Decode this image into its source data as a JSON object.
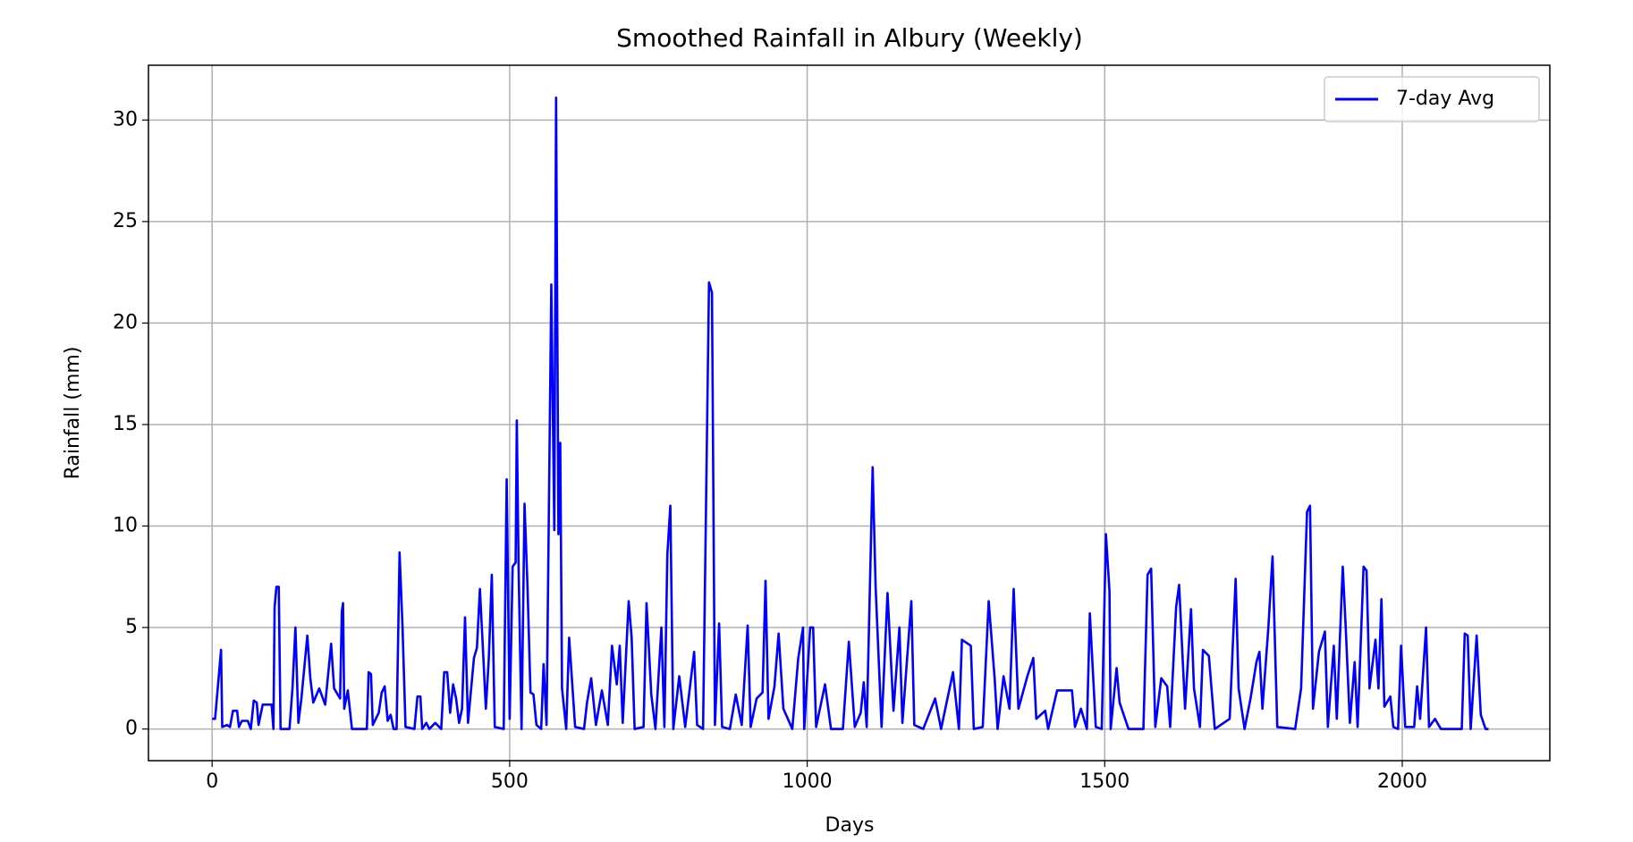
{
  "chart_data": {
    "type": "line",
    "title": "Smoothed Rainfall in Albury (Weekly)",
    "x_label": "Days",
    "y_label": "Rainfall (mm)",
    "xlim": [
      -107,
      2248
    ],
    "ylim": [
      -1.56,
      32.7
    ],
    "xticks": [
      0,
      500,
      1000,
      1500,
      2000
    ],
    "yticks": [
      0,
      5,
      10,
      15,
      20,
      25,
      30
    ],
    "grid": true,
    "legend": "upper right",
    "x": [
      0,
      5,
      15,
      17,
      25,
      30,
      35,
      42,
      45,
      50,
      60,
      65,
      70,
      75,
      78,
      85,
      100,
      103,
      105,
      108,
      112,
      115,
      130,
      135,
      140,
      145,
      150,
      160,
      165,
      170,
      180,
      190,
      200,
      205,
      215,
      218,
      220,
      222,
      228,
      235,
      260,
      263,
      267,
      270,
      280,
      285,
      290,
      295,
      300,
      305,
      310,
      315,
      320,
      325,
      340,
      345,
      350,
      353,
      360,
      365,
      375,
      385,
      390,
      395,
      400,
      405,
      410,
      415,
      420,
      425,
      430,
      440,
      445,
      450,
      455,
      460,
      465,
      470,
      475,
      490,
      495,
      500,
      505,
      510,
      512,
      515,
      520,
      525,
      530,
      535,
      540,
      545,
      553,
      557,
      562,
      570,
      575,
      578,
      582,
      585,
      588,
      595,
      600,
      610,
      625,
      630,
      637,
      645,
      655,
      665,
      672,
      680,
      685,
      690,
      700,
      705,
      710,
      725,
      730,
      738,
      745,
      755,
      760,
      765,
      770,
      775,
      785,
      795,
      810,
      815,
      825,
      835,
      840,
      845,
      852,
      857,
      870,
      880,
      890,
      900,
      905,
      915,
      925,
      930,
      935,
      945,
      952,
      960,
      975,
      985,
      993,
      995,
      1005,
      1010,
      1015,
      1030,
      1040,
      1060,
      1070,
      1080,
      1090,
      1095,
      1100,
      1110,
      1115,
      1125,
      1135,
      1145,
      1155,
      1160,
      1175,
      1180,
      1195,
      1215,
      1225,
      1245,
      1255,
      1260,
      1275,
      1280,
      1295,
      1305,
      1315,
      1320,
      1330,
      1340,
      1347,
      1355,
      1370,
      1380,
      1385,
      1400,
      1405,
      1420,
      1445,
      1450,
      1460,
      1470,
      1475,
      1485,
      1495,
      1502,
      1508,
      1510,
      1520,
      1525,
      1540,
      1565,
      1572,
      1578,
      1585,
      1595,
      1605,
      1610,
      1620,
      1625,
      1635,
      1645,
      1650,
      1660,
      1665,
      1675,
      1685,
      1710,
      1720,
      1725,
      1735,
      1745,
      1755,
      1760,
      1765,
      1775,
      1782,
      1790,
      1820,
      1830,
      1840,
      1845,
      1850,
      1860,
      1870,
      1875,
      1885,
      1890,
      1895,
      1900,
      1905,
      1912,
      1920,
      1925,
      1935,
      1940,
      1945,
      1955,
      1960,
      1965,
      1970,
      1980,
      1985,
      1993,
      1998,
      2005,
      2020,
      2025,
      2030,
      2040,
      2045,
      2055,
      2065,
      2100,
      2105,
      2110,
      2115,
      2125,
      2132,
      2140,
      2145
    ],
    "series": [
      {
        "name": "7-day Avg",
        "color": "#0000ff",
        "values": [
          0.5,
          0.5,
          3.9,
          0.1,
          0.2,
          0.1,
          0.9,
          0.9,
          0.1,
          0.4,
          0.4,
          0,
          1.4,
          1.3,
          0.2,
          1.2,
          1.2,
          0,
          6,
          7,
          7,
          0,
          0,
          2,
          5,
          0.3,
          1.5,
          4.6,
          2.5,
          1.3,
          2,
          1.2,
          4.2,
          2,
          1.5,
          5.8,
          6.2,
          1,
          1.9,
          0,
          0,
          2.8,
          2.7,
          0.2,
          0.8,
          1.8,
          2.1,
          0.4,
          0.7,
          0,
          0,
          8.7,
          5,
          0.1,
          0,
          1.6,
          1.6,
          0,
          0.3,
          0,
          0.3,
          0,
          2.8,
          2.8,
          0.8,
          2.2,
          1.5,
          0.3,
          1,
          5.5,
          0.3,
          3.5,
          4,
          6.9,
          4,
          1,
          3.5,
          7.6,
          0.1,
          0,
          12.3,
          0.5,
          8,
          8.2,
          15.2,
          8,
          0,
          11.1,
          7,
          1.8,
          1.7,
          0.2,
          0,
          3.2,
          0.2,
          21.9,
          9.8,
          31.1,
          9.6,
          14.1,
          2,
          0,
          4.5,
          0.1,
          0,
          1.3,
          2.5,
          0.2,
          1.9,
          0.2,
          4.1,
          2.2,
          4.1,
          0.3,
          6.3,
          4.5,
          0,
          0.1,
          6.2,
          1.7,
          0,
          5,
          0.1,
          8.6,
          11,
          0,
          2.6,
          0.1,
          3.8,
          0.2,
          0,
          22,
          21.5,
          0.2,
          5.2,
          0.1,
          0,
          1.7,
          0.2,
          5.1,
          0.1,
          1.5,
          1.8,
          7.3,
          0.5,
          2.1,
          4.7,
          1,
          0,
          3.5,
          5,
          0,
          5,
          5,
          0.1,
          2.2,
          0,
          0,
          4.3,
          0.1,
          0.8,
          2.3,
          0.1,
          12.9,
          7,
          0.1,
          6.7,
          0.9,
          5,
          0.3,
          6.3,
          0.2,
          0,
          1.5,
          0,
          2.8,
          0,
          4.4,
          4.1,
          0,
          0.1,
          6.3,
          2.5,
          0,
          2.6,
          1,
          6.9,
          1,
          2.6,
          3.5,
          0.5,
          0.9,
          0,
          1.9,
          1.9,
          0.1,
          1,
          0,
          5.7,
          0.1,
          0,
          9.6,
          6.8,
          0,
          3,
          1.3,
          0,
          0,
          7.6,
          7.9,
          0.1,
          2.5,
          2.1,
          0.1,
          6,
          7.1,
          1,
          5.9,
          2,
          0.1,
          3.9,
          3.6,
          0,
          0.5,
          7.4,
          2,
          0,
          1.5,
          3.3,
          3.8,
          1,
          5,
          8.5,
          0.1,
          0,
          2,
          10.7,
          11,
          1,
          3.8,
          4.8,
          0.1,
          4.1,
          0.5,
          4.3,
          8,
          5,
          0.3,
          3.3,
          0.1,
          8,
          7.8,
          2,
          4.4,
          2,
          6.4,
          1.1,
          1.6,
          0.1,
          0,
          4.1,
          0.1,
          0.1,
          2.1,
          0.5,
          5,
          0.1,
          0.5,
          0,
          0,
          4.7,
          4.6,
          0,
          4.6,
          0.7,
          0,
          0
        ]
      }
    ]
  }
}
